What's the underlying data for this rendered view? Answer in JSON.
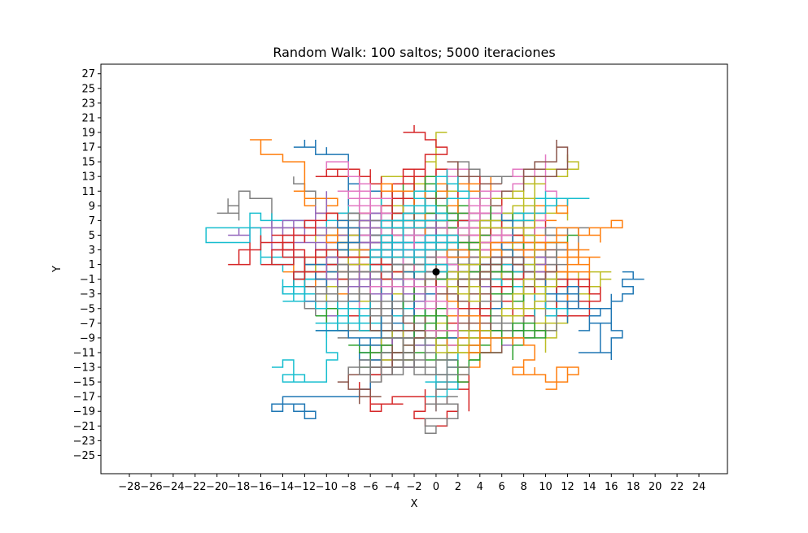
{
  "chart_data": {
    "type": "line",
    "title": "Random Walk: 100 saltos; 5000 iteraciones",
    "xlabel": "X",
    "ylabel": "Y",
    "xlim": [
      -30.6,
      26.6
    ],
    "ylim": [
      -27.5,
      28.3
    ],
    "x_ticks": [
      -28,
      -26,
      -24,
      -22,
      -20,
      -18,
      -16,
      -14,
      -12,
      -10,
      -8,
      -6,
      -4,
      -2,
      0,
      2,
      4,
      6,
      8,
      10,
      12,
      14,
      16,
      18,
      20,
      22,
      24
    ],
    "y_ticks": [
      -25,
      -23,
      -21,
      -19,
      -17,
      -15,
      -13,
      -11,
      -9,
      -7,
      -5,
      -3,
      -1,
      1,
      3,
      5,
      7,
      9,
      11,
      13,
      15,
      17,
      19,
      21,
      23,
      25,
      27
    ],
    "grid": false,
    "legend": "none",
    "origin_marker": {
      "x": 0,
      "y": 0,
      "color": "#000000"
    },
    "steps_per_walk": 100,
    "iterations": 5000,
    "palette": [
      "#1f77b4",
      "#ff7f0e",
      "#2ca02c",
      "#d62728",
      "#9467bd",
      "#8c564b",
      "#e377c2",
      "#7f7f7f",
      "#bcbd22",
      "#17becf"
    ]
  }
}
